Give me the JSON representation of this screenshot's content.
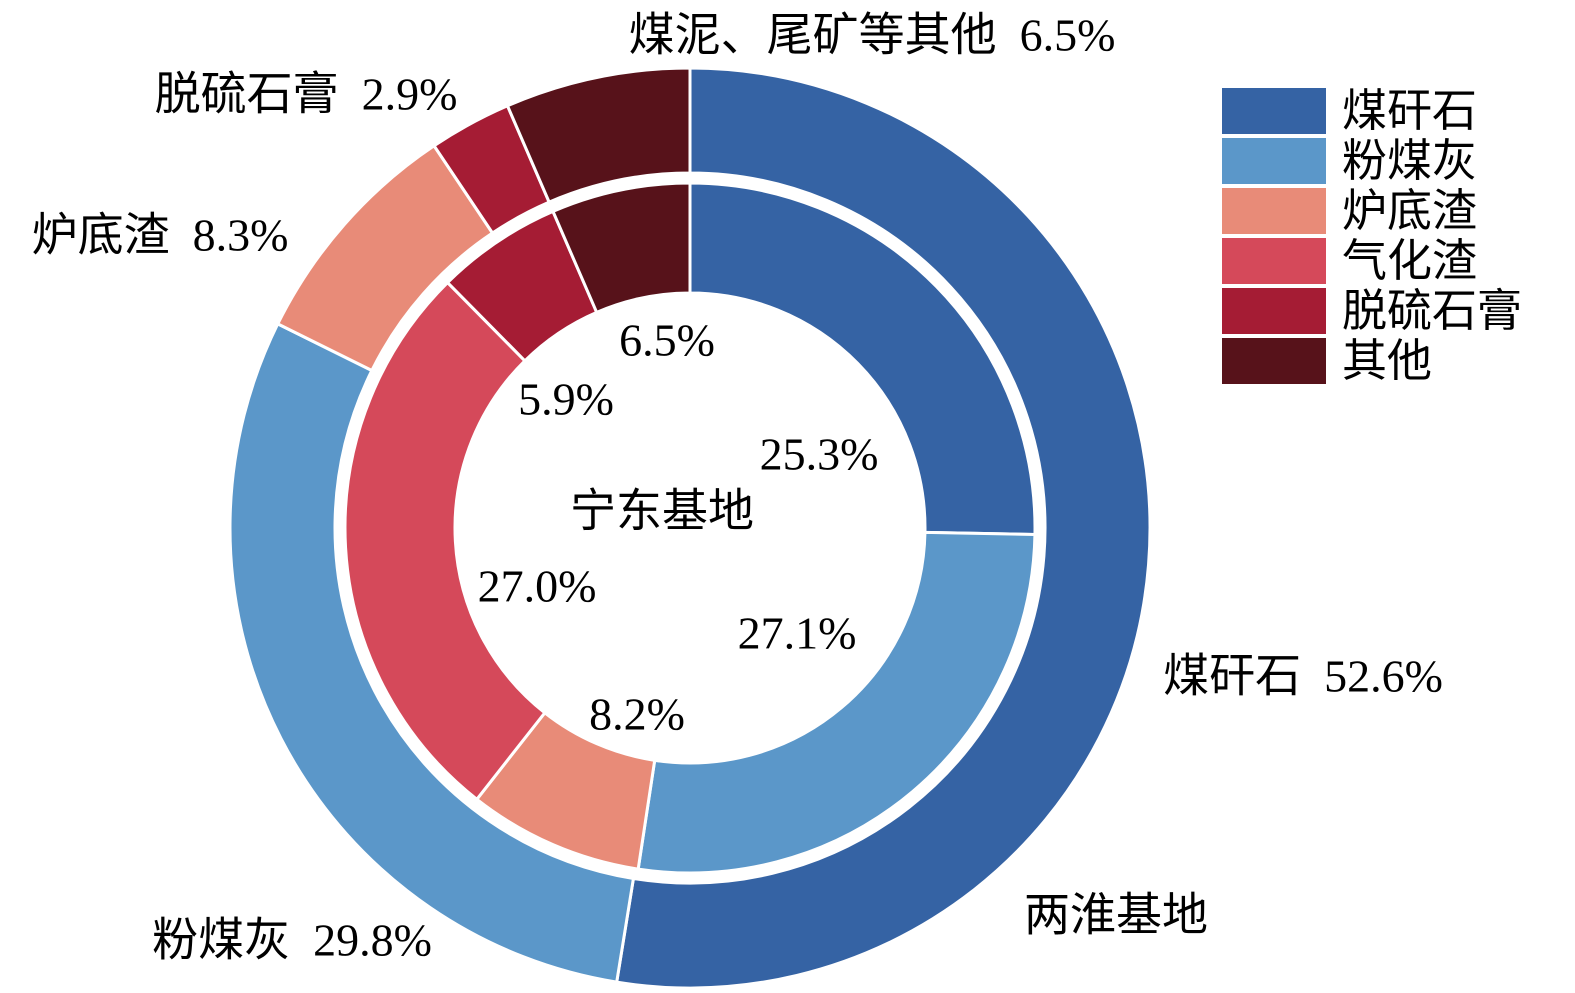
{
  "chart_data": {
    "type": "pie",
    "subtype": "nested-donut",
    "title": "",
    "legend_position": "top-right",
    "center_label": "宁东基地",
    "rings": [
      {
        "name": "两淮基地",
        "position": "outer",
        "segments": [
          {
            "label": "煤矸石",
            "value": 52.6,
            "color": "#3563a4"
          },
          {
            "label": "粉煤灰",
            "value": 29.8,
            "color": "#5b97c9"
          },
          {
            "label": "炉底渣",
            "value": 8.3,
            "color": "#e88b78"
          },
          {
            "label": "脱硫石膏",
            "value": 2.9,
            "color": "#a51c34"
          },
          {
            "label": "其他",
            "value": 6.5,
            "color": "#57121a"
          }
        ]
      },
      {
        "name": "宁东基地",
        "position": "inner",
        "segments": [
          {
            "label": "煤矸石",
            "value": 25.3,
            "color": "#3563a4"
          },
          {
            "label": "粉煤灰",
            "value": 27.1,
            "color": "#5b97c9"
          },
          {
            "label": "炉底渣",
            "value": 8.2,
            "color": "#e88b78"
          },
          {
            "label": "气化渣",
            "value": 27.0,
            "color": "#d5495a"
          },
          {
            "label": "脱硫石膏",
            "value": 5.9,
            "color": "#a51c34"
          },
          {
            "label": "其他",
            "value": 6.5,
            "color": "#57121a"
          }
        ]
      }
    ],
    "legend": [
      {
        "label": "煤矸石",
        "color": "#3563a4"
      },
      {
        "label": "粉煤灰",
        "color": "#5b97c9"
      },
      {
        "label": "炉底渣",
        "color": "#e88b78"
      },
      {
        "label": "气化渣",
        "color": "#d5495a"
      },
      {
        "label": "脱硫石膏",
        "color": "#a51c34"
      },
      {
        "label": "其他",
        "color": "#57121a"
      }
    ],
    "callouts": {
      "top_other": "煤泥、尾矿等其他  6.5%",
      "gypsum": "脱硫石膏  2.9%",
      "bottom_slag": "炉底渣  8.3%",
      "fly_ash": "粉煤灰  29.8%",
      "gangue": "煤矸石  52.6%",
      "outer_base": "两淮基地"
    },
    "inner_values": {
      "other": "6.5%",
      "gypsum": "5.9%",
      "gangue": "25.3%",
      "center": "宁东基地",
      "gasification": "27.0%",
      "fly_ash": "27.1%",
      "bottom_slag": "8.2%"
    }
  }
}
